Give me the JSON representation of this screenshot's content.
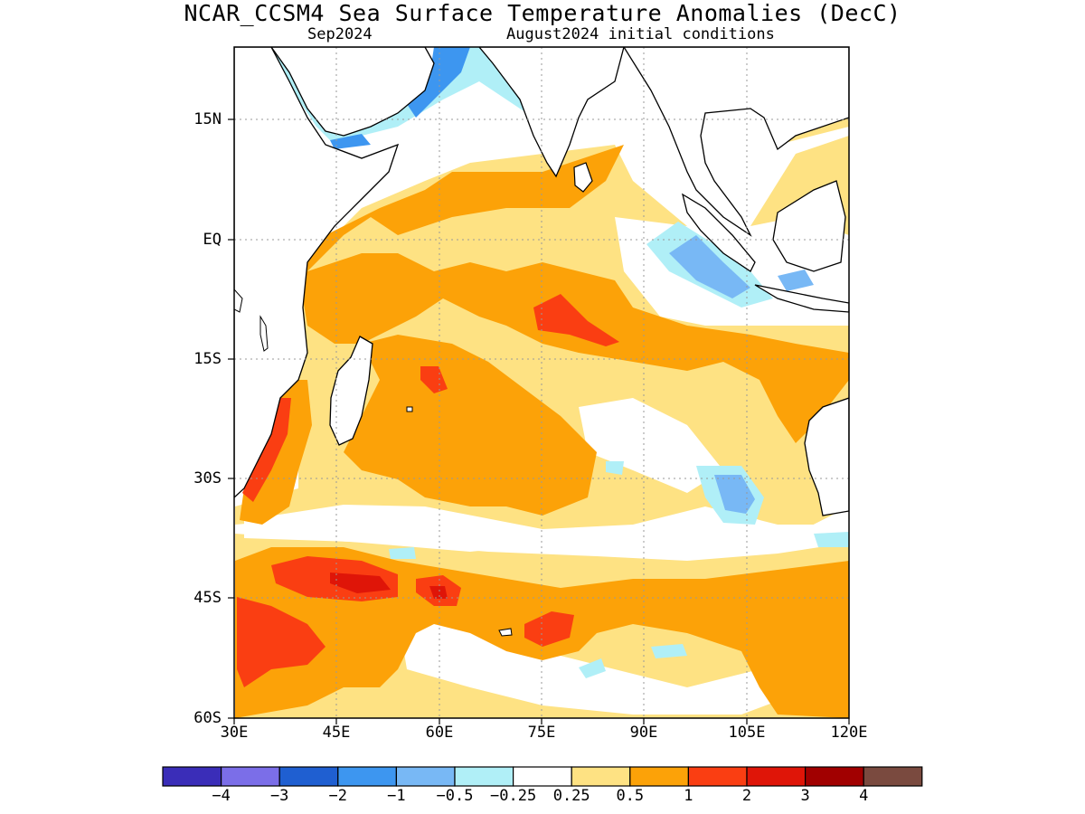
{
  "header": {
    "title": "NCAR_CCSM4 Sea Surface Temperature Anomalies (DecC)",
    "valid_month": "Sep2024",
    "init_conditions": "August2024 initial conditions"
  },
  "map": {
    "lon_range": [
      30,
      120
    ],
    "lat_range": [
      -60,
      22
    ],
    "lat_labels": [
      "15N",
      "EQ",
      "15S",
      "30S",
      "45S",
      "60S"
    ],
    "lon_labels": [
      "30E",
      "45E",
      "60E",
      "75E",
      "90E",
      "105E",
      "120E"
    ]
  },
  "colorbar": {
    "colors": [
      "#3a2db8",
      "#7b6ee8",
      "#1f5fd1",
      "#3d96f0",
      "#78b8f5",
      "#b0eff7",
      "#ffffff",
      "#fee283",
      "#fca208",
      "#fa3e12",
      "#df1508",
      "#a10000",
      "#7a4a3f"
    ],
    "labels": [
      "−4",
      "−3",
      "−2",
      "−1",
      "−0.5",
      "−0.25",
      "0.25",
      "0.5",
      "1",
      "2",
      "3",
      "4"
    ]
  },
  "chart_data": {
    "type": "heatmap",
    "variable": "Sea Surface Temperature Anomalies",
    "units": "DecC",
    "levels": [
      -4,
      -3,
      -2,
      -1,
      -0.5,
      -0.25,
      0.25,
      0.5,
      1,
      2,
      3,
      4
    ],
    "features": [
      {
        "region": "Arabian Sea / Red Sea coast",
        "range": "-2 to -0.25"
      },
      {
        "region": "off Sumatra and Java",
        "range": "-1 to -0.25"
      },
      {
        "region": "off southwest Australia",
        "range": "-1 to -0.25"
      },
      {
        "region": "central Indian Ocean 10S 75E",
        "range": "1 to 2"
      },
      {
        "region": "Agulhas region 45S 45E-60E",
        "range": "1 to 3"
      },
      {
        "region": "south of Madagascar coast",
        "range": "1 to 2"
      },
      {
        "region": "southern ocean 48S 76E",
        "range": "1 to 2"
      }
    ]
  }
}
